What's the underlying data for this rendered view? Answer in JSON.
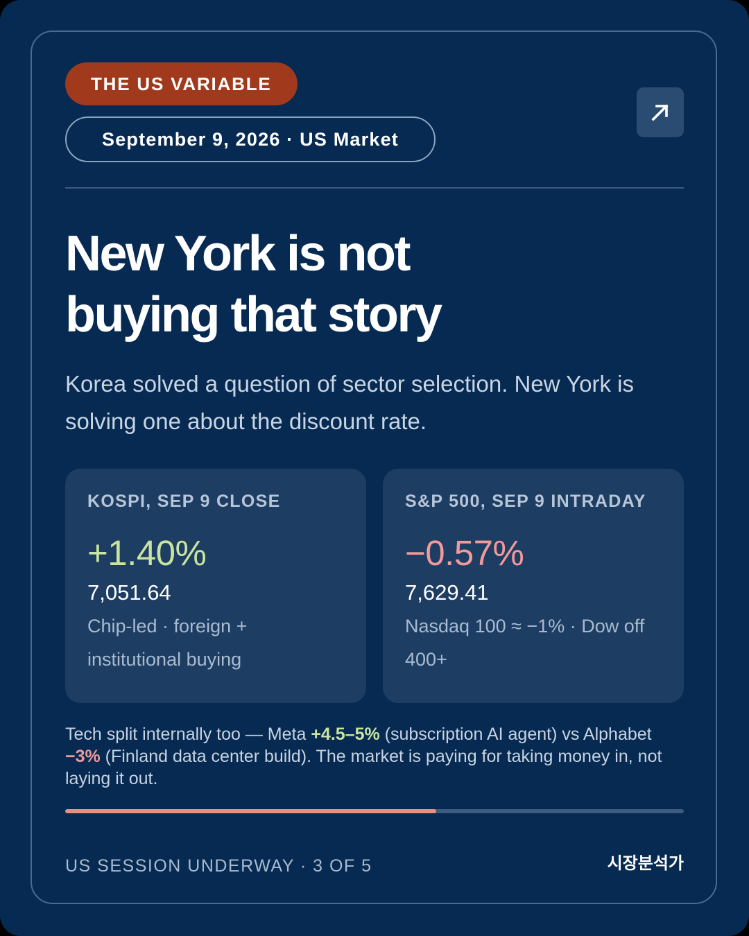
{
  "header": {
    "tag": "THE US VARIABLE",
    "date_line": "September 9, 2026 · US Market",
    "share_icon": "arrow-up-right-icon"
  },
  "main": {
    "headline_line1": "New York is not",
    "headline_line2": "buying that story",
    "subhead": "Korea solved a question of sector selection. New York is solving one about the discount rate."
  },
  "stats": [
    {
      "label": "KOSPI, SEP 9 CLOSE",
      "change": "+1.40%",
      "value": "7,051.64",
      "note": "Chip-led · foreign + institutional buying"
    },
    {
      "label": "S&P 500, SEP 9 INTRADAY",
      "change": "−0.57%",
      "value": "7,629.41",
      "note": "Nasdaq 100 ≈ −1% · Dow off 400+"
    }
  ],
  "footnote": {
    "part1": "Tech split internally too — Meta ",
    "meta_change": "+4.5–5%",
    "part2": " (subscription AI agent) vs Alphabet ",
    "alphabet_change": "−3%",
    "part3": " (Finland data center build). The market is paying for taking money in, not laying it out."
  },
  "progress": {
    "current": 3,
    "total": 5,
    "fill_fraction": 0.6
  },
  "footer": {
    "status": "US SESSION UNDERWAY · 3 OF 5",
    "brand": "시장분석가"
  },
  "colors": {
    "background": "#062a52",
    "tag": "#a13a1c",
    "positive": "#c9e4a0",
    "negative": "#f19a9a",
    "progress": "#e8907a"
  }
}
